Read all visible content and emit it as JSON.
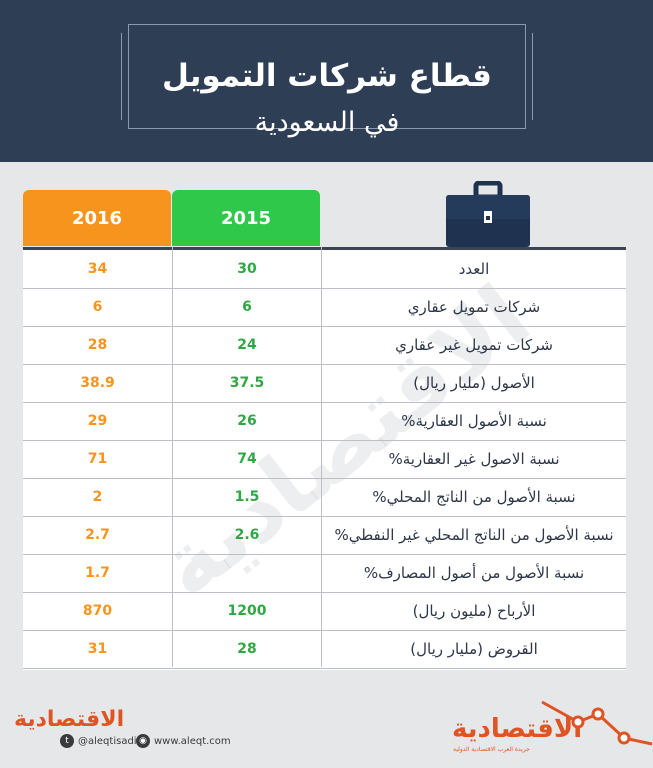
{
  "title": {
    "main": "قطاع شركات التمويل",
    "sub": "في السعودية"
  },
  "columns": {
    "y2016": "2016",
    "y2015": "2015"
  },
  "rows": [
    {
      "label": "العدد",
      "v2015": "30",
      "v2016": "34"
    },
    {
      "label": "شركات تمويل عقاري",
      "v2015": "6",
      "v2016": "6"
    },
    {
      "label": "شركات تمويل غير عقاري",
      "v2015": "24",
      "v2016": "28"
    },
    {
      "label": "الأصول (مليار ريال)",
      "v2015": "37.5",
      "v2016": "38.9"
    },
    {
      "label": "نسبة الأصول العقارية%",
      "v2015": "26",
      "v2016": "29"
    },
    {
      "label": "نسبة الاصول غير العقارية%",
      "v2015": "74",
      "v2016": "71"
    },
    {
      "label": "نسبة الأصول من الناتج المحلي%",
      "v2015": "1.5",
      "v2016": "2"
    },
    {
      "label": "نسبة الأصول من الناتج المحلي غير النفطي%",
      "v2015": "2.6",
      "v2016": "2.7"
    },
    {
      "label": "نسبة الأصول من أصول المصارف%",
      "v2015": "",
      "v2016": "1.7"
    },
    {
      "label": "الأرباح (مليون ريال)",
      "v2015": "1200",
      "v2016": "870"
    },
    {
      "label": "القروض (مليار ريال)",
      "v2015": "28",
      "v2016": "31"
    }
  ],
  "watermark": "الاقتصادية",
  "footer": {
    "brand_left": "الاقتصادية",
    "twitter": "@aleqtisadiah",
    "website": "www.aleqt.com",
    "brand_right": "الاقتصادية",
    "brand_right_sub": "جريدة العرب الاقتصادية الدولية"
  },
  "colors": {
    "header_bg": "#2d3e55",
    "col_2016": "#f7941d",
    "col_2015": "#2fc84a",
    "value_2016": "#f7941d",
    "value_2015": "#2fa844",
    "brand": "#e05424"
  },
  "icons": {
    "briefcase": "briefcase-icon",
    "twitter": "twitter-icon",
    "web": "web-icon",
    "trend": "trend-line-icon"
  }
}
